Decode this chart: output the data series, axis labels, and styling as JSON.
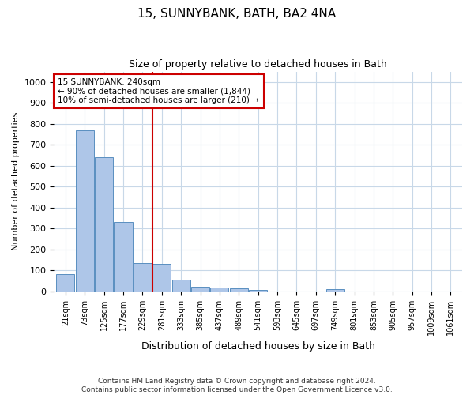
{
  "title": "15, SUNNYBANK, BATH, BA2 4NA",
  "subtitle": "Size of property relative to detached houses in Bath",
  "xlabel": "Distribution of detached houses by size in Bath",
  "ylabel": "Number of detached properties",
  "categories": [
    "21sqm",
    "73sqm",
    "125sqm",
    "177sqm",
    "229sqm",
    "281sqm",
    "333sqm",
    "385sqm",
    "437sqm",
    "489sqm",
    "541sqm",
    "593sqm",
    "645sqm",
    "697sqm",
    "749sqm",
    "801sqm",
    "853sqm",
    "905sqm",
    "957sqm",
    "1009sqm",
    "1061sqm"
  ],
  "values": [
    82,
    770,
    640,
    330,
    133,
    130,
    57,
    22,
    16,
    13,
    8,
    0,
    0,
    0,
    10,
    0,
    0,
    0,
    0,
    0,
    0
  ],
  "bar_color": "#aec6e8",
  "bar_edge_color": "#5a8fc0",
  "property_line_x": 4.5,
  "annotation_text": "15 SUNNYBANK: 240sqm\n← 90% of detached houses are smaller (1,844)\n10% of semi-detached houses are larger (210) →",
  "annotation_box_color": "#ffffff",
  "annotation_box_edge_color": "#cc0000",
  "vline_color": "#cc0000",
  "ylim": [
    0,
    1050
  ],
  "yticks": [
    0,
    100,
    200,
    300,
    400,
    500,
    600,
    700,
    800,
    900,
    1000
  ],
  "footer": "Contains HM Land Registry data © Crown copyright and database right 2024.\nContains public sector information licensed under the Open Government Licence v3.0.",
  "background_color": "#ffffff",
  "grid_color": "#c8d8e8",
  "title_fontsize": 11,
  "subtitle_fontsize": 9,
  "ylabel_fontsize": 8,
  "xlabel_fontsize": 9,
  "annotation_fontsize": 7.5,
  "footer_fontsize": 6.5
}
